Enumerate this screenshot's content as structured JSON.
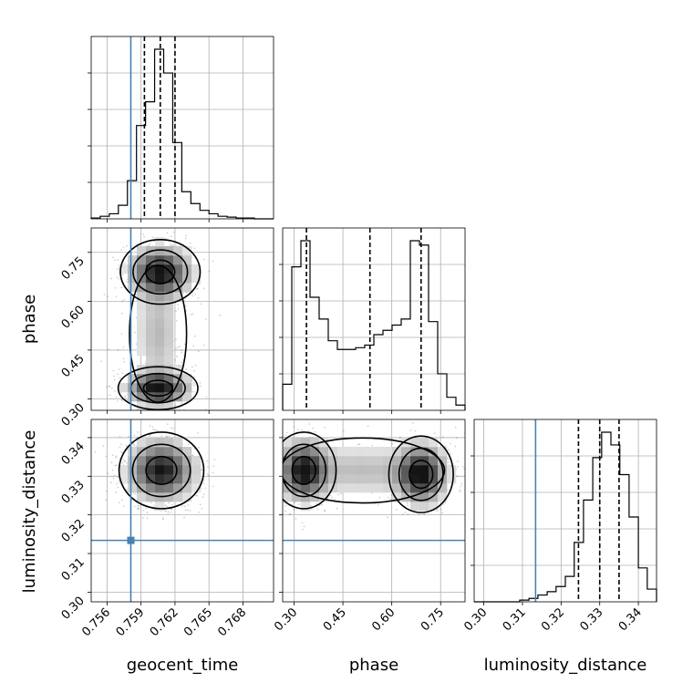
{
  "chart_data": {
    "type": "corner",
    "parameters": [
      "geocent_time",
      "phase",
      "luminosity_distance"
    ],
    "truths": {
      "geocent_time": 0.7581,
      "phase": null,
      "luminosity_distance": 0.3134
    },
    "truth_color": "#4682b4",
    "ranges": {
      "geocent_time": [
        0.7546,
        0.7707
      ],
      "phase": [
        0.265,
        0.825
      ],
      "luminosity_distance": [
        0.2975,
        0.3447
      ]
    },
    "ticks": {
      "geocent_time": {
        "values": [
          0.756,
          0.759,
          0.762,
          0.765,
          0.768
        ],
        "labels": [
          "0.756",
          "0.759",
          "0.762",
          "0.765",
          "0.768"
        ]
      },
      "phase": {
        "values": [
          0.3,
          0.45,
          0.6,
          0.75
        ],
        "labels": [
          "0.30",
          "0.45",
          "0.60",
          "0.75"
        ]
      },
      "luminosity_distance": {
        "values": [
          0.3,
          0.31,
          0.32,
          0.33,
          0.34
        ],
        "labels": [
          "0.30",
          "0.31",
          "0.32",
          "0.33",
          "0.34"
        ]
      }
    },
    "quantiles": {
      "geocent_time": [
        0.7593,
        0.7607,
        0.762
      ],
      "phase": [
        0.338,
        0.533,
        0.69
      ],
      "luminosity_distance": [
        0.3245,
        0.33,
        0.335
      ]
    },
    "histograms": {
      "geocent_time": {
        "edges": [
          0.7546,
          0.7554,
          0.7562,
          0.757,
          0.7578,
          0.7586,
          0.7594,
          0.7602,
          0.761,
          0.7618,
          0.7626,
          0.7634,
          0.7642,
          0.765,
          0.7658,
          0.7666,
          0.7674,
          0.7682,
          0.769,
          0.7698,
          0.7707
        ],
        "counts": [
          1,
          3,
          6,
          16,
          45,
          110,
          138,
          200,
          172,
          90,
          32,
          18,
          10,
          6,
          3,
          2,
          1,
          1,
          0,
          0
        ]
      },
      "phase": {
        "edges": [
          0.265,
          0.293,
          0.321,
          0.349,
          0.377,
          0.405,
          0.433,
          0.461,
          0.489,
          0.517,
          0.545,
          0.573,
          0.601,
          0.629,
          0.657,
          0.685,
          0.713,
          0.741,
          0.769,
          0.797,
          0.825
        ],
        "counts": [
          30,
          165,
          195,
          130,
          105,
          80,
          70,
          70,
          72,
          75,
          87,
          92,
          98,
          105,
          195,
          190,
          102,
          42,
          15,
          6
        ]
      },
      "luminosity_distance": {
        "edges": [
          0.2975,
          0.2999,
          0.3022,
          0.3046,
          0.3069,
          0.3093,
          0.3117,
          0.314,
          0.3164,
          0.3187,
          0.3211,
          0.3234,
          0.3258,
          0.3282,
          0.3305,
          0.3329,
          0.3352,
          0.3376,
          0.34,
          0.3423,
          0.3447
        ],
        "counts": [
          0,
          0,
          0,
          0,
          0,
          2,
          4,
          8,
          12,
          18,
          30,
          70,
          120,
          170,
          200,
          185,
          150,
          100,
          40,
          15
        ]
      }
    },
    "modes": {
      "geocent_time|phase": [
        [
          0.7607,
          0.69,
          1.0,
          0.0016,
          0.045
        ],
        [
          0.7605,
          0.333,
          1.0,
          0.0016,
          0.03
        ]
      ],
      "geocent_time|luminosity_distance": [
        [
          0.7608,
          0.3315,
          1.0,
          0.0017,
          0.0045
        ]
      ],
      "phase|luminosity_distance": [
        [
          0.33,
          0.3315,
          1.0,
          0.045,
          0.0045
        ],
        [
          0.69,
          0.3305,
          1.0,
          0.045,
          0.0045
        ]
      ]
    },
    "bridges": {
      "geocent_time|phase": [
        0.7605,
        0.5,
        0.3,
        0.0012,
        0.1
      ],
      "phase|luminosity_distance": [
        0.51,
        0.3315,
        0.28,
        0.12,
        0.004
      ]
    },
    "xlabels": [
      "geocent_time",
      "phase",
      "luminosity_distance"
    ],
    "ylabels": [
      "",
      "phase",
      "luminosity_distance"
    ],
    "grid": true,
    "histogram_color": "#000000",
    "density_cmap": "greys"
  }
}
